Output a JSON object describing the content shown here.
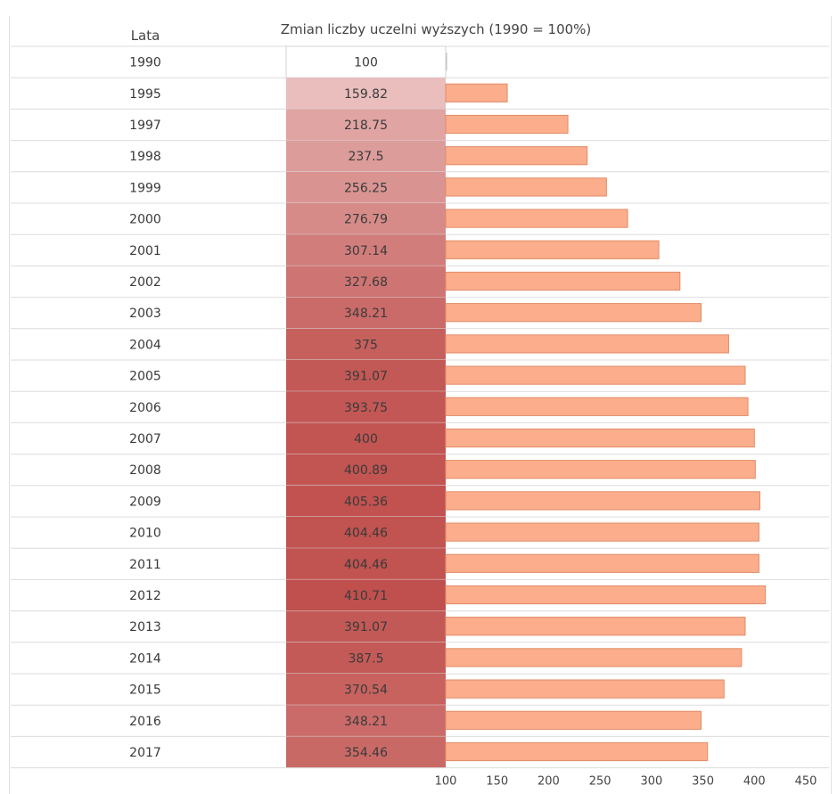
{
  "header": {
    "year_col_label": "Lata",
    "value_col_label": "Zmian liczby uczelni wyższych (1990 = 100%)"
  },
  "colors": {
    "bar_fill": "#fcae8c",
    "bar_stroke": "#e08a66",
    "cell_low": "#f3d8d8",
    "cell_high": "#c0504d",
    "grid": "#dcdcdc"
  },
  "chart_data": {
    "type": "bar",
    "orientation": "horizontal",
    "title": "Zmian liczby uczelni wyższych (1990 = 100%)",
    "categories": [
      "1990",
      "1995",
      "1997",
      "1998",
      "1999",
      "2000",
      "2001",
      "2002",
      "2003",
      "2004",
      "2005",
      "2006",
      "2007",
      "2008",
      "2009",
      "2010",
      "2011",
      "2012",
      "2013",
      "2014",
      "2015",
      "2016",
      "2017"
    ],
    "values": [
      100,
      159.82,
      218.75,
      237.5,
      256.25,
      276.79,
      307.14,
      327.68,
      348.21,
      375,
      391.07,
      393.75,
      400,
      400.89,
      405.36,
      404.46,
      404.46,
      410.71,
      391.07,
      387.5,
      370.54,
      348.21,
      354.46
    ],
    "value_labels": [
      "100",
      "159.82",
      "218.75",
      "237.5",
      "256.25",
      "276.79",
      "307.14",
      "327.68",
      "348.21",
      "375",
      "391.07",
      "393.75",
      "400",
      "400.89",
      "405.36",
      "404.46",
      "404.46",
      "410.71",
      "391.07",
      "387.5",
      "370.54",
      "348.21",
      "354.46"
    ],
    "xlim": [
      100,
      450
    ],
    "xticks": [
      "100",
      "150",
      "200",
      "250",
      "300",
      "350",
      "400",
      "450"
    ],
    "grid": false,
    "legend": "none"
  }
}
